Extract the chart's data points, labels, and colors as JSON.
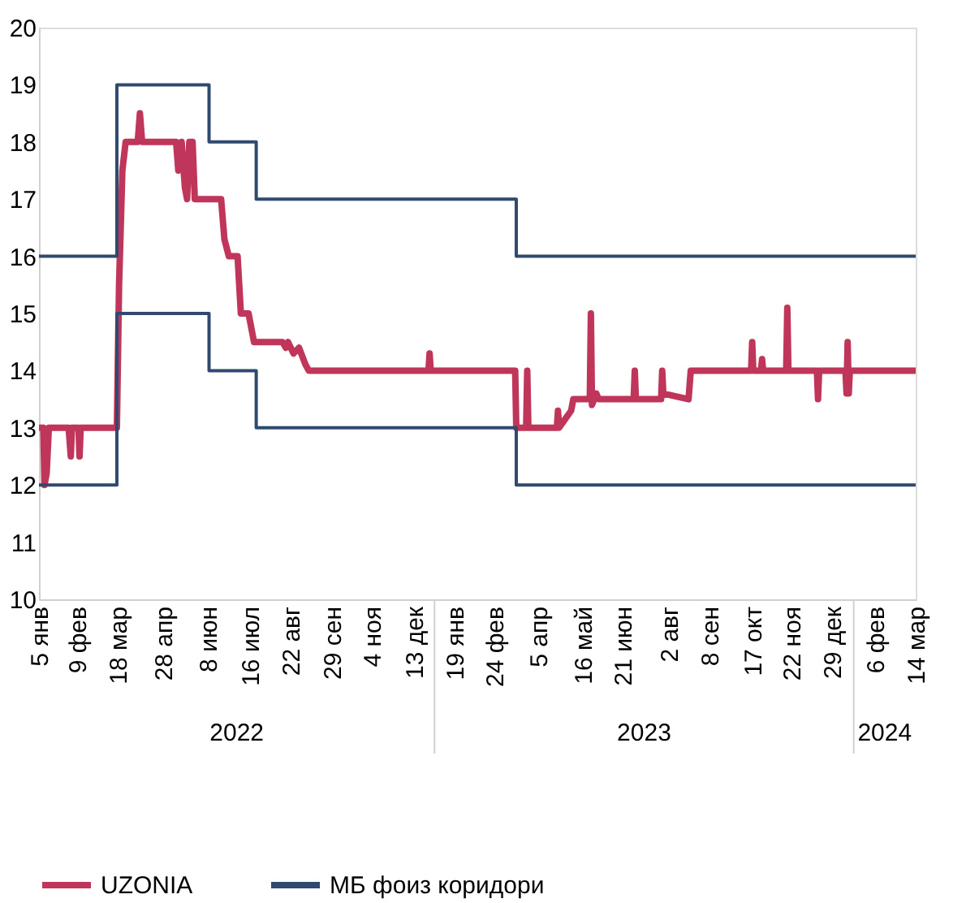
{
  "chart_data": {
    "type": "line",
    "legend": "bottom",
    "grid": false,
    "xlim": [
      "2022-01-05",
      "2024-03-14"
    ],
    "xticks": [
      {
        "value": "2022-01-05",
        "label": "5 янв"
      },
      {
        "value": "2022-02-09",
        "label": "9 фев"
      },
      {
        "value": "2022-03-18",
        "label": "18 мар"
      },
      {
        "value": "2022-04-28",
        "label": "28 апр"
      },
      {
        "value": "2022-06-08",
        "label": "8 июн"
      },
      {
        "value": "2022-07-16",
        "label": "16 июл"
      },
      {
        "value": "2022-08-22",
        "label": "22 авг"
      },
      {
        "value": "2022-09-29",
        "label": "29 сен"
      },
      {
        "value": "2022-11-04",
        "label": "4 ноя"
      },
      {
        "value": "2022-12-13",
        "label": "13 дек"
      },
      {
        "value": "2023-01-19",
        "label": "19 янв"
      },
      {
        "value": "2023-02-24",
        "label": "24 фев"
      },
      {
        "value": "2023-04-05",
        "label": "5 апр"
      },
      {
        "value": "2023-05-16",
        "label": "16 май"
      },
      {
        "value": "2023-06-21",
        "label": "21 июн"
      },
      {
        "value": "2023-08-02",
        "label": "2 авг"
      },
      {
        "value": "2023-09-08",
        "label": "8 сен"
      },
      {
        "value": "2023-10-17",
        "label": "17 окт"
      },
      {
        "value": "2023-11-22",
        "label": "22 ноя"
      },
      {
        "value": "2023-12-29",
        "label": "29 дек"
      },
      {
        "value": "2024-02-06",
        "label": "6 фев"
      },
      {
        "value": "2024-03-14",
        "label": "14 мар"
      }
    ],
    "ylim": [
      10,
      20
    ],
    "yticks": [
      10,
      11,
      12,
      13,
      14,
      15,
      16,
      17,
      18,
      19,
      20
    ],
    "annotations": [
      "2022",
      "2023",
      "2024"
    ],
    "series": [
      {
        "name": "UZONIA",
        "color": "#c0365a",
        "type": "line",
        "x": [
          "2022-01-05",
          "2022-01-09",
          "2022-01-10",
          "2022-01-12",
          "2022-01-14",
          "2022-02-01",
          "2022-02-03",
          "2022-02-04",
          "2022-02-10",
          "2022-02-11",
          "2022-02-12",
          "2022-03-17",
          "2022-03-19",
          "2022-03-22",
          "2022-03-25",
          "2022-04-05",
          "2022-04-07",
          "2022-04-09",
          "2022-05-10",
          "2022-05-12",
          "2022-05-15",
          "2022-05-18",
          "2022-05-20",
          "2022-05-22",
          "2022-05-25",
          "2022-05-27",
          "2022-06-20",
          "2022-06-23",
          "2022-06-27",
          "2022-07-05",
          "2022-07-08",
          "2022-07-15",
          "2022-07-20",
          "2022-08-15",
          "2022-08-18",
          "2022-08-20",
          "2022-08-25",
          "2022-08-30",
          "2022-09-05",
          "2022-09-08",
          "2022-12-26",
          "2022-12-27",
          "2022-12-28",
          "2023-03-15",
          "2023-03-16",
          "2023-03-25",
          "2023-03-26",
          "2023-03-27",
          "2023-04-22",
          "2023-04-23",
          "2023-04-24",
          "2023-05-05",
          "2023-05-07",
          "2023-05-22",
          "2023-05-23",
          "2023-05-24",
          "2023-05-28",
          "2023-05-30",
          "2023-07-01",
          "2023-07-02",
          "2023-07-03",
          "2023-07-26",
          "2023-07-27",
          "2023-07-28",
          "2023-08-20",
          "2023-08-22",
          "2023-10-16",
          "2023-10-17",
          "2023-10-18",
          "2023-10-25",
          "2023-10-26",
          "2023-10-27",
          "2023-11-17",
          "2023-11-18",
          "2023-11-19",
          "2023-12-15",
          "2023-12-16",
          "2023-12-17",
          "2024-01-10",
          "2024-01-11",
          "2024-01-12",
          "2024-01-13",
          "2024-01-14",
          "2024-03-14"
        ],
        "values": [
          13,
          13,
          12,
          12.2,
          13,
          13,
          12.5,
          13,
          13,
          12.5,
          13,
          13,
          15.5,
          17.5,
          18,
          18,
          18.5,
          18,
          18,
          17.5,
          18,
          17.2,
          17,
          18,
          18,
          17,
          17,
          16.3,
          16,
          16,
          15,
          15,
          14.5,
          14.5,
          14.4,
          14.5,
          14.3,
          14.4,
          14.1,
          14,
          14,
          14.3,
          14,
          14,
          13,
          13,
          14,
          13,
          13,
          13.3,
          13,
          13.3,
          13.5,
          13.5,
          15,
          13.4,
          13.6,
          13.5,
          13.5,
          14,
          13.5,
          13.5,
          14,
          13.6,
          13.5,
          14,
          14,
          14.5,
          14,
          14,
          14.2,
          14,
          14,
          15.1,
          14,
          14,
          13.5,
          14,
          14,
          13.6,
          14.5,
          13.6,
          14,
          14
        ]
      },
      {
        "name": "МБ фоиз коридори",
        "color": "#2f4a6e",
        "type": "step",
        "x": [
          "2022-01-05",
          "2022-03-17",
          "2022-06-09",
          "2022-07-22",
          "2023-03-16",
          "2024-03-14"
        ],
        "values": [
          16,
          19,
          18,
          17,
          16,
          16
        ]
      },
      {
        "color": "#2f4a6e",
        "type": "step",
        "x": [
          "2022-01-05",
          "2022-03-17",
          "2022-06-09",
          "2022-07-22",
          "2023-03-16",
          "2024-03-14"
        ],
        "values": [
          12,
          15,
          14,
          13,
          12,
          12
        ]
      }
    ]
  }
}
